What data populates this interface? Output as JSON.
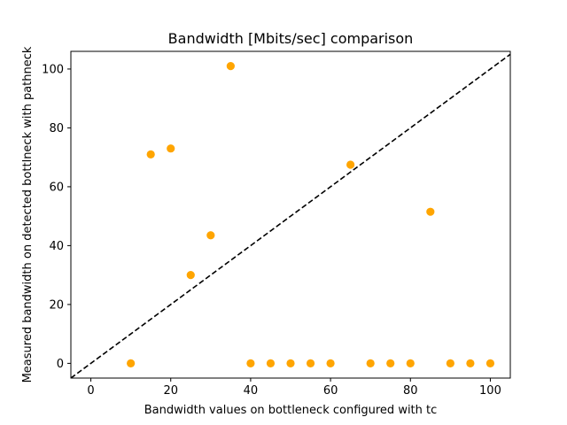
{
  "chart_data": {
    "type": "scatter",
    "title": "Bandwidth [Mbits/sec] comparison",
    "xlabel": "Bandwidth values on bottleneck configured with tc",
    "ylabel": "Measured bandwidth on detected bottlneck with pathneck",
    "xlim": [
      -5,
      105
    ],
    "ylim": [
      -5,
      106
    ],
    "xticks": [
      0,
      20,
      40,
      60,
      80,
      100
    ],
    "yticks": [
      0,
      20,
      40,
      60,
      80,
      100
    ],
    "grid": false,
    "point_color": "#ffa500",
    "reference_line": {
      "style": "dashed",
      "color": "#000000",
      "x": [
        -5,
        105
      ],
      "y": [
        -5,
        105
      ]
    },
    "points": [
      {
        "x": 10,
        "y": 0
      },
      {
        "x": 15,
        "y": 71
      },
      {
        "x": 20,
        "y": 73
      },
      {
        "x": 25,
        "y": 30
      },
      {
        "x": 30,
        "y": 43.5
      },
      {
        "x": 35,
        "y": 101
      },
      {
        "x": 40,
        "y": 0
      },
      {
        "x": 45,
        "y": 0
      },
      {
        "x": 50,
        "y": 0
      },
      {
        "x": 55,
        "y": 0
      },
      {
        "x": 60,
        "y": 0
      },
      {
        "x": 65,
        "y": 67.5
      },
      {
        "x": 70,
        "y": 0
      },
      {
        "x": 75,
        "y": 0
      },
      {
        "x": 80,
        "y": 0
      },
      {
        "x": 85,
        "y": 51.5
      },
      {
        "x": 90,
        "y": 0
      },
      {
        "x": 95,
        "y": 0
      },
      {
        "x": 100,
        "y": 0
      }
    ]
  }
}
